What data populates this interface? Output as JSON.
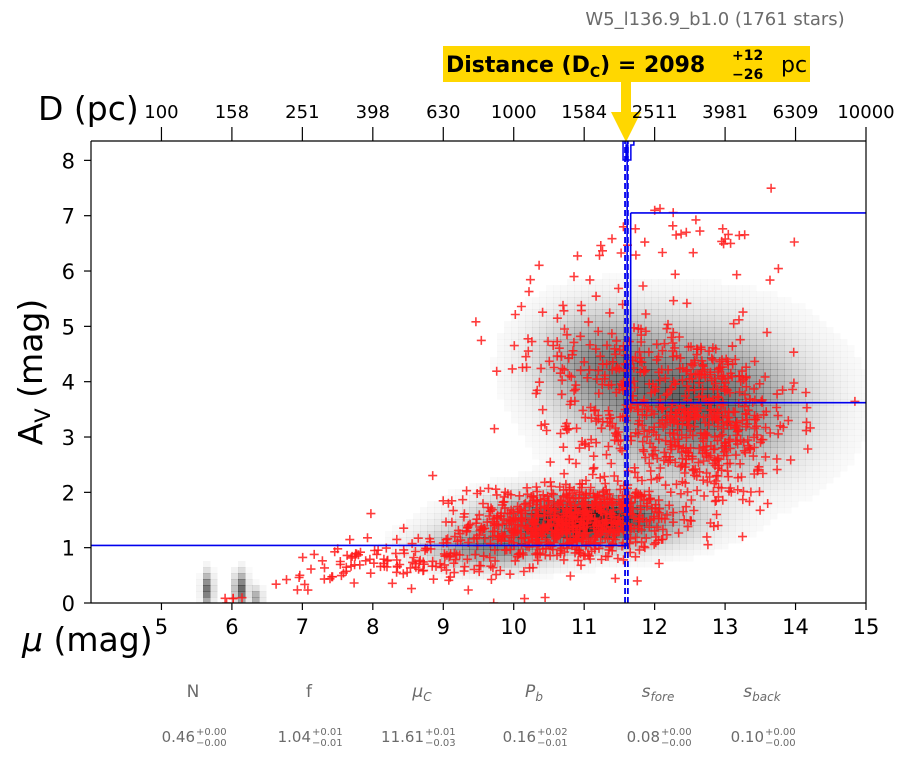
{
  "chart_data": {
    "type": "scatter",
    "title": "W5_l136.9_b1.0 (1761 stars)",
    "annotation": {
      "prefix": "Distance (D",
      "sub": "C",
      "mid": ") = 2098",
      "sup": "+12",
      "subval": "−26",
      "unit": "pc"
    },
    "xlabel_symbol": "μ",
    "xlabel_unit": "(mag)",
    "ylabel_main": "A",
    "ylabel_sub": "V",
    "ylabel_unit": "(mag)",
    "top_axis_label": "D (pc)",
    "xlim": [
      4,
      15
    ],
    "ylim": [
      0,
      8.35
    ],
    "xticks": [
      5,
      6,
      7,
      8,
      9,
      10,
      11,
      12,
      13,
      14,
      15
    ],
    "xtick_labels": [
      "5",
      "6",
      "7",
      "8",
      "9",
      "10",
      "11",
      "12",
      "13",
      "14",
      "15"
    ],
    "yticks": [
      0,
      1,
      2,
      3,
      4,
      5,
      6,
      7,
      8
    ],
    "ytick_labels": [
      "0",
      "1",
      "2",
      "3",
      "4",
      "5",
      "6",
      "7",
      "8"
    ],
    "top_ticks_mu": [
      5,
      6,
      7,
      8,
      9,
      10,
      11,
      12,
      13,
      14,
      15
    ],
    "top_tick_labels": [
      "100",
      "158",
      "251",
      "398",
      "630",
      "1000",
      "1584",
      "2511",
      "3981",
      "6309",
      "10000"
    ],
    "distance_mu": 11.61,
    "distance_mu_err": [
      11.58,
      11.62
    ],
    "extinction_model": [
      {
        "mu0": 4,
        "mu1": 11.61,
        "av": 1.04
      },
      {
        "mu0": 11.61,
        "mu1": 11.66,
        "av": 7.05
      },
      {
        "mu0": 11.66,
        "mu1": 15,
        "av": 7.05,
        "label": "upper"
      },
      {
        "mu0": 11.66,
        "mu1": 15,
        "av": 3.62,
        "label": "lower"
      }
    ],
    "density_clouds": [
      {
        "mu": 11.0,
        "av": 1.5,
        "smu": 0.85,
        "sav": 0.32,
        "w": 0.85
      },
      {
        "mu": 12.6,
        "av": 3.6,
        "smu": 0.95,
        "sav": 0.85,
        "w": 0.6
      },
      {
        "mu": 11.2,
        "av": 4.4,
        "smu": 0.6,
        "sav": 0.6,
        "w": 0.35
      },
      {
        "mu": 9.6,
        "av": 1.0,
        "smu": 0.6,
        "sav": 0.25,
        "w": 0.4
      },
      {
        "mu": 5.65,
        "av": 0.25,
        "smu": 0.05,
        "sav": 0.2,
        "w": 0.55
      },
      {
        "mu": 6.12,
        "av": 0.25,
        "smu": 0.06,
        "sav": 0.2,
        "w": 0.6
      },
      {
        "mu": 6.35,
        "av": 0.1,
        "smu": 0.05,
        "sav": 0.12,
        "w": 0.35
      }
    ],
    "star_clusters": [
      {
        "mu": 10.8,
        "av": 1.45,
        "smu": 0.7,
        "sav": 0.35,
        "n": 700
      },
      {
        "mu": 12.6,
        "av": 3.3,
        "smu": 0.7,
        "sav": 0.8,
        "n": 560
      },
      {
        "mu": 11.1,
        "av": 4.2,
        "smu": 0.7,
        "sav": 0.9,
        "n": 160
      },
      {
        "mu": 8.7,
        "av": 0.8,
        "smu": 0.7,
        "sav": 0.25,
        "n": 120
      },
      {
        "mu": 7.3,
        "av": 0.5,
        "smu": 0.35,
        "sav": 0.2,
        "n": 18
      },
      {
        "mu": 12.6,
        "av": 6.5,
        "smu": 0.7,
        "sav": 0.4,
        "n": 30
      },
      {
        "mu": 6.1,
        "av": 0.1,
        "smu": 0.15,
        "sav": 0.08,
        "n": 5
      }
    ],
    "star_count": 1761,
    "stars_rendered": 1593,
    "params": [
      {
        "name": "N",
        "name_sub": "",
        "value": "0.46",
        "plus": "+0.00",
        "minus": "−0.00"
      },
      {
        "name": "f",
        "name_sub": "",
        "value": "1.04",
        "plus": "+0.01",
        "minus": "−0.01"
      },
      {
        "name": "μ",
        "name_sub": "C",
        "value": "11.61",
        "plus": "+0.01",
        "minus": "−0.03"
      },
      {
        "name": "P",
        "name_sub": "b",
        "value": "0.16",
        "plus": "+0.02",
        "minus": "−0.01"
      },
      {
        "name": "s",
        "name_sub": "fore",
        "value": "0.08",
        "plus": "+0.00",
        "minus": "−0.00"
      },
      {
        "name": "s",
        "name_sub": "back",
        "value": "0.10",
        "plus": "+0.00",
        "minus": "−0.00"
      }
    ],
    "colors": {
      "marker": "#ff1a1a",
      "model": "#0000ee",
      "annotation_bg": "#ffd700",
      "arrow": "#ffd700",
      "title": "#6b6b6b"
    }
  }
}
